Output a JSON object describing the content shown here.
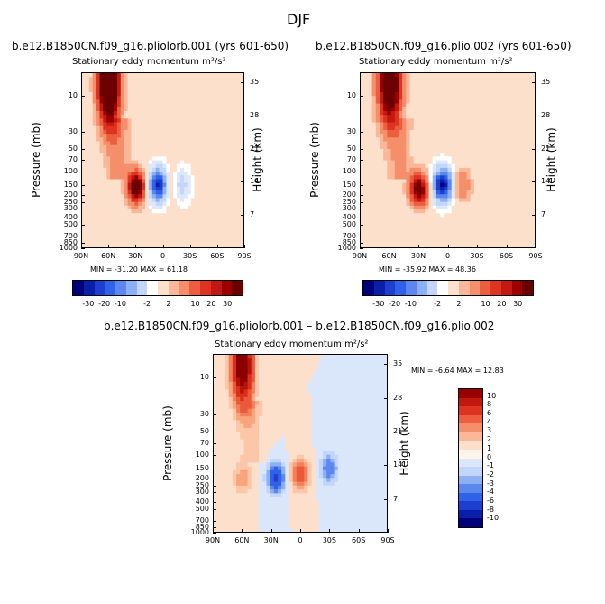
{
  "suptitle": "DJF",
  "panels": [
    {
      "case": "b.e12.B1850CN.f09_g16.pliolorb.001 (yrs 601-650)",
      "title": "Stationary eddy momentum  m²/s²",
      "stats": "MIN = -31.20   MAX =  61.18"
    },
    {
      "case": "b.e12.B1850CN.f09_g16.plio.002 (yrs 601-650)",
      "title": "Stationary eddy momentum  m²/s²",
      "stats": "MIN = -35.92   MAX =  48.36"
    },
    {
      "case": "b.e12.B1850CN.f09_g16.pliolorb.001 – b.e12.B1850CN.f09_g16.plio.002",
      "title": "Stationary eddy momentum  m²/s²",
      "stats": "MIN =   -6.64   MAX =  12.83"
    }
  ],
  "axes": {
    "ylabel": "Pressure (mb)",
    "ylabel_right": "Height (km)",
    "xticks": [
      "90N",
      "60N",
      "30N",
      "0",
      "30S",
      "60S",
      "90S"
    ],
    "pressure_ticks": [
      "10",
      "30",
      "50",
      "70",
      "100",
      "150",
      "200",
      "250",
      "300",
      "400",
      "500",
      "700",
      "850",
      "1000"
    ],
    "height_ticks": [
      "35",
      "28",
      "21",
      "14",
      "7"
    ]
  },
  "colorbar_top": {
    "labels": [
      "-30",
      "-20",
      "-10",
      "-2",
      "2",
      "10",
      "20",
      "30"
    ],
    "colors": [
      "#00007a",
      "#0a1fa8",
      "#1c3fd0",
      "#2f62e6",
      "#5a88ee",
      "#8db0f4",
      "#c2d6fb",
      "#ffffff",
      "#fde0cc",
      "#fbb898",
      "#f58e6b",
      "#ec5e3f",
      "#dd3320",
      "#c21810",
      "#9a0000",
      "#6b0000"
    ]
  },
  "colorbar_bottom": {
    "labels": [
      "10",
      "8",
      "6",
      "4",
      "3",
      "2",
      "1",
      "0",
      "-1",
      "-2",
      "-3",
      "-4",
      "-6",
      "-8",
      "-10"
    ],
    "colors": [
      "#9a0000",
      "#c21810",
      "#dd3320",
      "#ec5e3f",
      "#f58e6b",
      "#fbb898",
      "#fde0cc",
      "#fff3ea",
      "#dae7fb",
      "#c2d6fb",
      "#8db0f4",
      "#5a88ee",
      "#2f62e6",
      "#1c3fd0",
      "#0a1fa8",
      "#00007a"
    ]
  },
  "chart_data": [
    {
      "type": "heatmap",
      "title": "Stationary eddy momentum  m²/s²",
      "subtitle": "b.e12.B1850CN.f09_g16.pliolorb.001 (yrs 601-650)",
      "xlabel": "",
      "ylabel": "Pressure (mb)",
      "y2label": "Height (km)",
      "xlim": [
        90,
        -90
      ],
      "ylim_mb": [
        1000,
        5
      ],
      "min": -31.2,
      "max": 61.18,
      "levels": [
        -35,
        -30,
        -25,
        -20,
        -15,
        -10,
        -5,
        -2,
        2,
        5,
        10,
        15,
        20,
        25,
        30,
        35
      ],
      "features": [
        {
          "lat": 60,
          "p": 7,
          "value": 61.18,
          "sign": "positive"
        },
        {
          "lat": 30,
          "p": 160,
          "value": 40,
          "sign": "positive"
        },
        {
          "lat": 5,
          "p": 150,
          "value": -31.2,
          "sign": "negative"
        },
        {
          "lat": -20,
          "p": 150,
          "value": -8,
          "sign": "negative"
        },
        {
          "lat": -10,
          "p": 150,
          "value": 5,
          "sign": "positive"
        }
      ]
    },
    {
      "type": "heatmap",
      "title": "Stationary eddy momentum  m²/s²",
      "subtitle": "b.e12.B1850CN.f09_g16.plio.002 (yrs 601-650)",
      "xlabel": "",
      "ylabel": "Pressure (mb)",
      "y2label": "Height (km)",
      "xlim": [
        90,
        -90
      ],
      "ylim_mb": [
        1000,
        5
      ],
      "min": -35.92,
      "max": 48.36,
      "levels": [
        -35,
        -30,
        -25,
        -20,
        -15,
        -10,
        -5,
        -2,
        2,
        5,
        10,
        15,
        20,
        25,
        30,
        35
      ],
      "features": [
        {
          "lat": 60,
          "p": 7,
          "value": 48.36,
          "sign": "positive"
        },
        {
          "lat": 30,
          "p": 170,
          "value": 35,
          "sign": "positive"
        },
        {
          "lat": 5,
          "p": 150,
          "value": -35.92,
          "sign": "negative"
        },
        {
          "lat": -15,
          "p": 150,
          "value": 10,
          "sign": "positive"
        }
      ]
    },
    {
      "type": "heatmap",
      "title": "Stationary eddy momentum  m²/s²",
      "subtitle": "b.e12.B1850CN.f09_g16.pliolorb.001 – b.e12.B1850CN.f09_g16.plio.002",
      "xlabel": "",
      "ylabel": "Pressure (mb)",
      "y2label": "Height (km)",
      "xlim": [
        90,
        -90
      ],
      "ylim_mb": [
        1000,
        5
      ],
      "min": -6.64,
      "max": 12.83,
      "levels": [
        -10,
        -8,
        -6,
        -4,
        -3,
        -2,
        -1,
        0,
        1,
        2,
        3,
        4,
        6,
        8,
        10
      ],
      "features": [
        {
          "lat": 60,
          "p": 7,
          "value": 12.83,
          "sign": "positive"
        },
        {
          "lat": 25,
          "p": 200,
          "value": -6.64,
          "sign": "negative"
        },
        {
          "lat": 0,
          "p": 180,
          "value": 6,
          "sign": "positive"
        },
        {
          "lat": -30,
          "p": 150,
          "value": -4,
          "sign": "negative"
        },
        {
          "lat": 60,
          "p": 200,
          "value": 3,
          "sign": "positive"
        }
      ]
    }
  ]
}
